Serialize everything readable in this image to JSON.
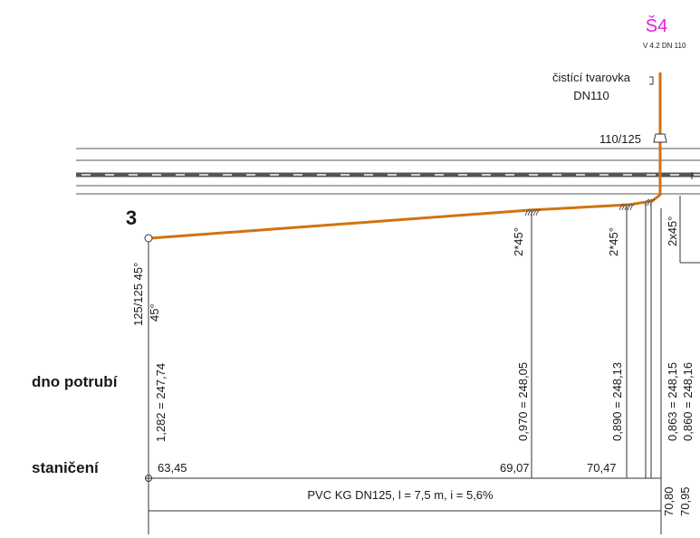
{
  "colors": {
    "pipe": "#d2730f",
    "manhole_label": "#e020e0",
    "line": "#333333",
    "road_centre": "#555555"
  },
  "manhole": {
    "id": "Š4",
    "subtitle": "V 4.2  DN 110"
  },
  "fitting": {
    "line1": "čistící tvarovka",
    "line2": "DN110",
    "reducer": "110/125"
  },
  "node": {
    "number": "3",
    "bend_label": "125/125 45°",
    "bend_label_2": "45°"
  },
  "bends": {
    "b1": "2*45°",
    "b2": "2*45°",
    "b3": "2x45°"
  },
  "row_labels": {
    "bottom": "dno potrubí",
    "chainage": "staničení"
  },
  "elevations": {
    "e1": "1,282 = 247,74",
    "e2": "0,970 = 248,05",
    "e3": "0,890 = 248,13",
    "e4": "0,863 = 248,15",
    "e5": "0,860 = 248,16"
  },
  "chainage": {
    "c1": "63,45",
    "c2": "69,07",
    "c3": "70,47",
    "c4": "70,80",
    "c5": "70,95"
  },
  "pipe_label": "PVC KG DN125,  l = 7,5 m, i = 5,6%"
}
